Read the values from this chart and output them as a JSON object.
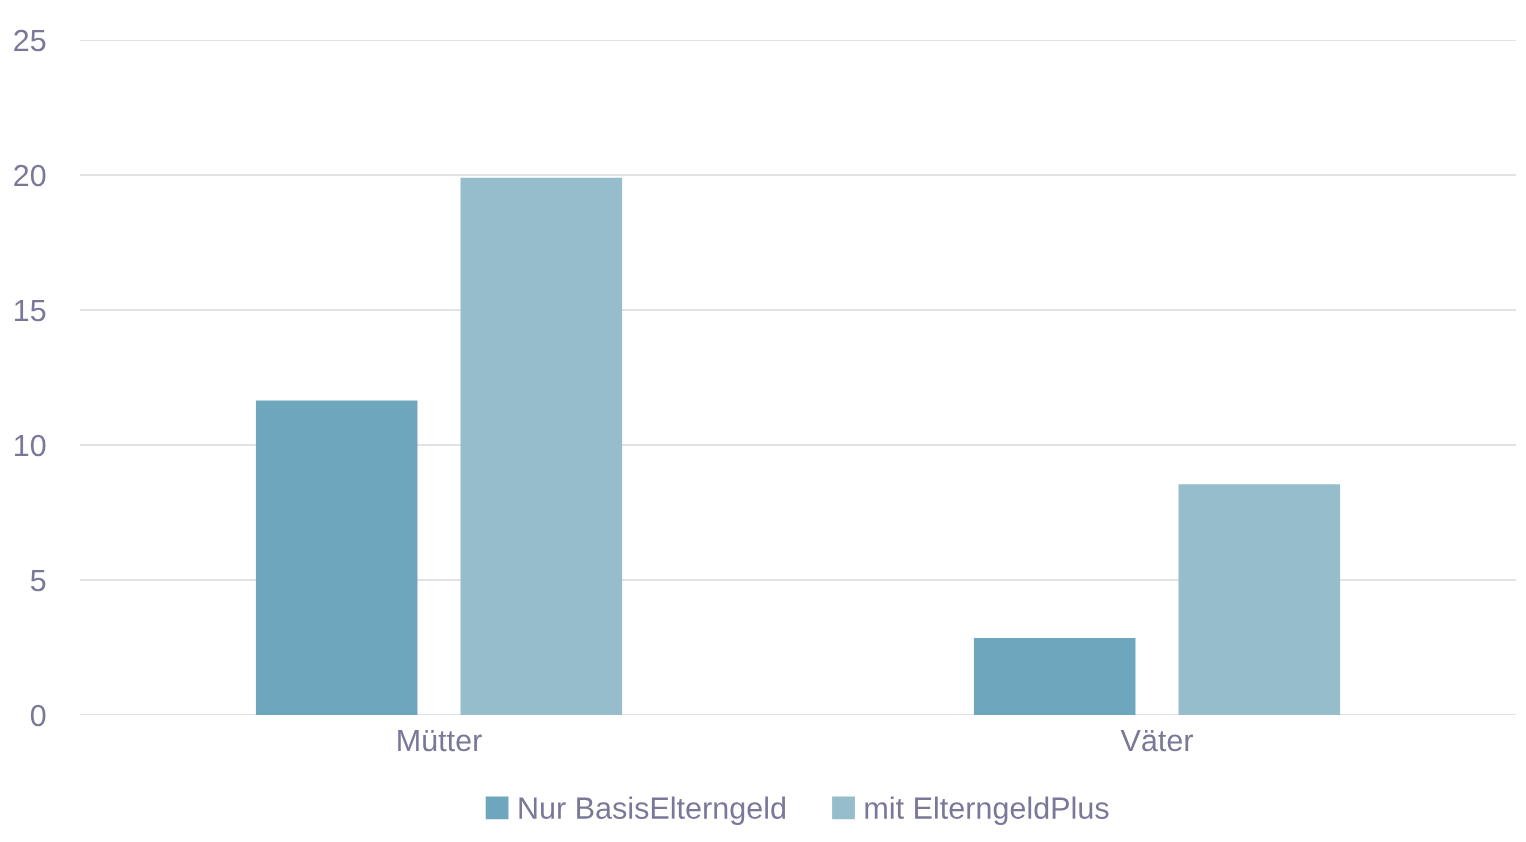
{
  "chart_data": {
    "type": "bar",
    "categories": [
      "Mütter",
      "Väter"
    ],
    "series": [
      {
        "name": "Nur BasisElterngeld",
        "color": "#6ea7bd",
        "values": [
          11.65,
          2.85
        ]
      },
      {
        "name": "mit ElterngeldPlus",
        "color": "#96bdcc",
        "values": [
          19.9,
          8.55
        ]
      }
    ],
    "ylim": [
      0,
      25
    ],
    "yticks": [
      0,
      5,
      10,
      15,
      20,
      25
    ],
    "grid": "y",
    "legend": "bottom"
  }
}
